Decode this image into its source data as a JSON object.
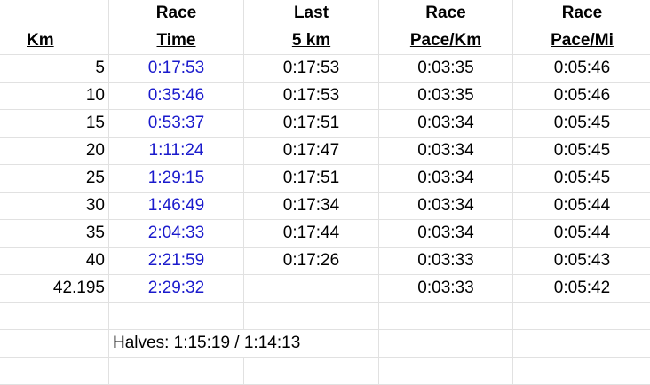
{
  "header_row1": [
    "",
    "Race",
    "Last",
    "Race",
    "Race"
  ],
  "header_row2": [
    "Km",
    "Time",
    "5 km",
    "Pace/Km",
    "Pace/Mi"
  ],
  "rows": [
    {
      "km": "5",
      "time": "0:17:53",
      "last5": "0:17:53",
      "pace_km": "0:03:35",
      "pace_mi": "0:05:46"
    },
    {
      "km": "10",
      "time": "0:35:46",
      "last5": "0:17:53",
      "pace_km": "0:03:35",
      "pace_mi": "0:05:46"
    },
    {
      "km": "15",
      "time": "0:53:37",
      "last5": "0:17:51",
      "pace_km": "0:03:34",
      "pace_mi": "0:05:45"
    },
    {
      "km": "20",
      "time": "1:11:24",
      "last5": "0:17:47",
      "pace_km": "0:03:34",
      "pace_mi": "0:05:45"
    },
    {
      "km": "25",
      "time": "1:29:15",
      "last5": "0:17:51",
      "pace_km": "0:03:34",
      "pace_mi": "0:05:45"
    },
    {
      "km": "30",
      "time": "1:46:49",
      "last5": "0:17:34",
      "pace_km": "0:03:34",
      "pace_mi": "0:05:44"
    },
    {
      "km": "35",
      "time": "2:04:33",
      "last5": "0:17:44",
      "pace_km": "0:03:34",
      "pace_mi": "0:05:44"
    },
    {
      "km": "40",
      "time": "2:21:59",
      "last5": "0:17:26",
      "pace_km": "0:03:33",
      "pace_mi": "0:05:43"
    },
    {
      "km": "42.195",
      "time": "2:29:32",
      "last5": "",
      "pace_km": "0:03:33",
      "pace_mi": "0:05:42"
    }
  ],
  "halves_note": "Halves: 1:15:19 / 1:14:13",
  "colors": {
    "time_text": "#1a1acc",
    "grid_line": "#e1e1e1"
  }
}
